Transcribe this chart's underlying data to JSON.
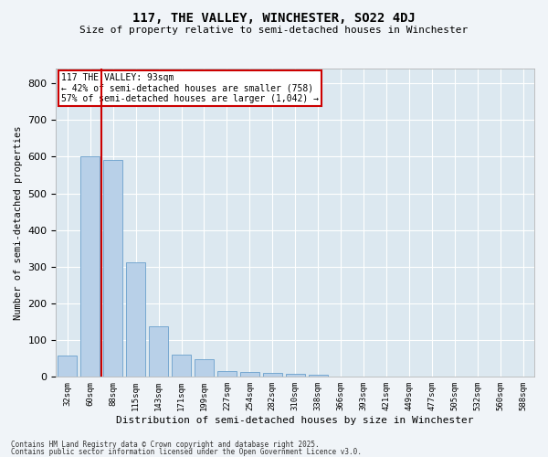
{
  "title": "117, THE VALLEY, WINCHESTER, SO22 4DJ",
  "subtitle": "Size of property relative to semi-detached houses in Winchester",
  "xlabel": "Distribution of semi-detached houses by size in Winchester",
  "ylabel": "Number of semi-detached properties",
  "bar_color": "#b8d0e8",
  "bar_edge_color": "#6aa0cc",
  "background_color": "#dce8f0",
  "grid_color": "#ffffff",
  "annotation_box_color": "#cc0000",
  "vline_color": "#cc0000",
  "property_label": "117 THE VALLEY: 93sqm",
  "pct_smaller": 42,
  "pct_larger": 57,
  "n_smaller": 758,
  "n_larger": 1042,
  "categories": [
    "32sqm",
    "60sqm",
    "88sqm",
    "115sqm",
    "143sqm",
    "171sqm",
    "199sqm",
    "227sqm",
    "254sqm",
    "282sqm",
    "310sqm",
    "338sqm",
    "366sqm",
    "393sqm",
    "421sqm",
    "449sqm",
    "477sqm",
    "505sqm",
    "532sqm",
    "560sqm",
    "588sqm"
  ],
  "values": [
    57,
    601,
    590,
    311,
    138,
    60,
    47,
    17,
    13,
    10,
    9,
    5,
    0,
    0,
    0,
    0,
    0,
    0,
    0,
    0,
    0
  ],
  "vline_x_index": 1.5,
  "ylim": [
    0,
    840
  ],
  "yticks": [
    0,
    100,
    200,
    300,
    400,
    500,
    600,
    700,
    800
  ],
  "footer1": "Contains HM Land Registry data © Crown copyright and database right 2025.",
  "footer2": "Contains public sector information licensed under the Open Government Licence v3.0."
}
